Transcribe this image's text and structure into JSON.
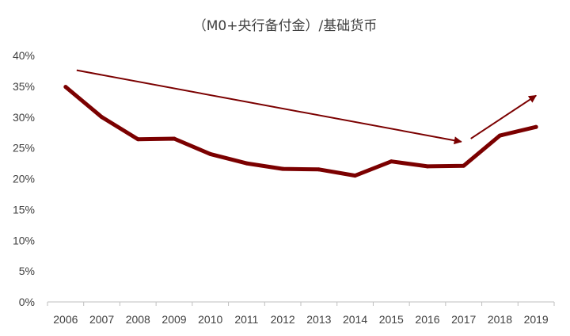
{
  "chart_data": {
    "type": "line",
    "title": "（M0+央行备付金）/基础货币",
    "xlabel": "",
    "ylabel": "",
    "categories": [
      "2006",
      "2007",
      "2008",
      "2009",
      "2010",
      "2011",
      "2012",
      "2013",
      "2014",
      "2015",
      "2016",
      "2017",
      "2018",
      "2019"
    ],
    "series": [
      {
        "values": [
          34.9,
          30.0,
          26.4,
          26.5,
          24.0,
          22.5,
          21.6,
          21.5,
          20.5,
          22.8,
          22.0,
          22.1,
          27.0,
          28.4
        ]
      }
    ],
    "ylim": [
      0,
      40
    ],
    "yticks": [
      0,
      5,
      10,
      15,
      20,
      25,
      30,
      35,
      40
    ],
    "ytick_labels": [
      "0%",
      "5%",
      "10%",
      "15%",
      "20%",
      "25%",
      "30%",
      "35%",
      "40%"
    ],
    "grid": false,
    "legend": "none",
    "colors": {
      "line": "#7b0000",
      "arrow": "#7b0000",
      "axis": "#bfbfbf",
      "text": "#404040"
    },
    "annotations": [
      {
        "kind": "arrow",
        "from": {
          "x": "2006",
          "y": 37.6
        },
        "to": {
          "x": "2017",
          "y": 26.0
        }
      },
      {
        "kind": "arrow",
        "from": {
          "x": "2017",
          "y": 26.5
        },
        "to": {
          "x": "2019",
          "y": 33.5
        }
      }
    ]
  }
}
